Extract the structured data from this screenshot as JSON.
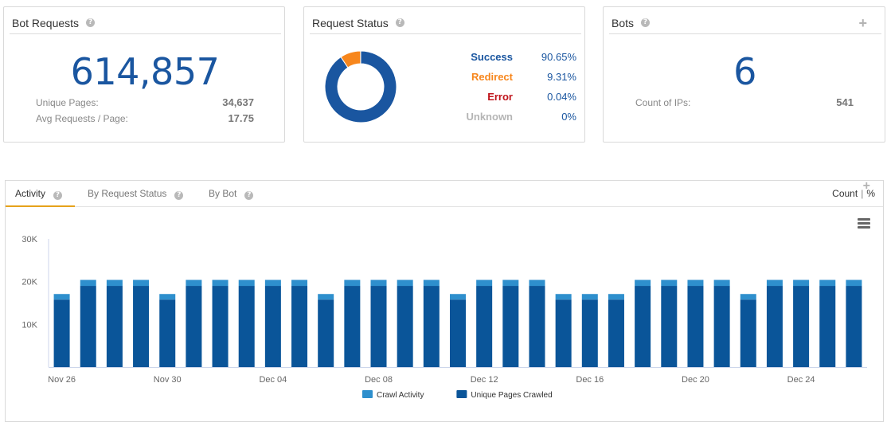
{
  "bot_requests": {
    "title": "Bot Requests",
    "total": "614,857",
    "unique_pages_label": "Unique Pages:",
    "unique_pages_value": "34,637",
    "avg_label": "Avg Requests / Page:",
    "avg_value": "17.75"
  },
  "request_status": {
    "title": "Request Status",
    "rows": [
      {
        "name": "Success",
        "pct": "90.65%",
        "color": "#1a56a0",
        "fraction": 0.9065
      },
      {
        "name": "Redirect",
        "pct": "9.31%",
        "color": "#f7861c",
        "fraction": 0.0931
      },
      {
        "name": "Error",
        "pct": "0.04%",
        "color": "#c0141b",
        "fraction": 0.0004
      },
      {
        "name": "Unknown",
        "pct": "0%",
        "color": "#b5b5b5",
        "fraction": 0
      }
    ]
  },
  "bots": {
    "title": "Bots",
    "total": "6",
    "ips_label": "Count of IPs:",
    "ips_value": "541"
  },
  "panel": {
    "tabs": [
      {
        "label": "Activity",
        "active": true
      },
      {
        "label": "By Request Status",
        "active": false
      },
      {
        "label": "By Bot",
        "active": false
      }
    ],
    "toggle_count": "Count",
    "toggle_sep": "|",
    "toggle_pct": "%"
  },
  "colors": {
    "crawl_activity": "#2e8fcd",
    "unique_pages": "#0a5599",
    "accent_tab": "#e6a21b",
    "big_number": "#1a56a0"
  },
  "chart_data": {
    "type": "bar",
    "stacked": true,
    "y_ticks": [
      "30K",
      "20K",
      "10K"
    ],
    "ylim": [
      0,
      30000
    ],
    "x_tick_labels": [
      "Nov 26",
      "Nov 30",
      "Dec 04",
      "Dec 08",
      "Dec 12",
      "Dec 16",
      "Dec 20",
      "Dec 24"
    ],
    "x_tick_every": 4,
    "categories": [
      "Nov 26",
      "Nov 27",
      "Nov 28",
      "Nov 29",
      "Nov 30",
      "Dec 01",
      "Dec 02",
      "Dec 03",
      "Dec 04",
      "Dec 05",
      "Dec 06",
      "Dec 07",
      "Dec 08",
      "Dec 09",
      "Dec 10",
      "Dec 11",
      "Dec 12",
      "Dec 13",
      "Dec 14",
      "Dec 15",
      "Dec 16",
      "Dec 17",
      "Dec 18",
      "Dec 19",
      "Dec 20",
      "Dec 21",
      "Dec 22",
      "Dec 23",
      "Dec 24",
      "Dec 25",
      "Dec 26"
    ],
    "series": [
      {
        "name": "Unique Pages Crawled",
        "values": [
          15800,
          19000,
          19000,
          19000,
          15800,
          19000,
          19000,
          19000,
          19000,
          19000,
          15800,
          19000,
          19000,
          19000,
          19000,
          15800,
          19000,
          19000,
          19000,
          15800,
          15800,
          15800,
          19000,
          19000,
          19000,
          19000,
          15800,
          19000,
          19000,
          19000,
          19000
        ]
      },
      {
        "name": "Crawl Activity",
        "values": [
          1300,
          1400,
          1400,
          1400,
          1300,
          1400,
          1400,
          1400,
          1400,
          1400,
          1300,
          1400,
          1400,
          1400,
          1400,
          1300,
          1400,
          1400,
          1400,
          1300,
          1300,
          1300,
          1400,
          1400,
          1400,
          1400,
          1300,
          1400,
          1400,
          1400,
          1400
        ]
      }
    ],
    "legend": [
      {
        "label": "Crawl Activity",
        "color": "#2e8fcd"
      },
      {
        "label": "Unique Pages Crawled",
        "color": "#0a5599"
      }
    ],
    "legend_position": "bottom-center",
    "grid": false
  }
}
